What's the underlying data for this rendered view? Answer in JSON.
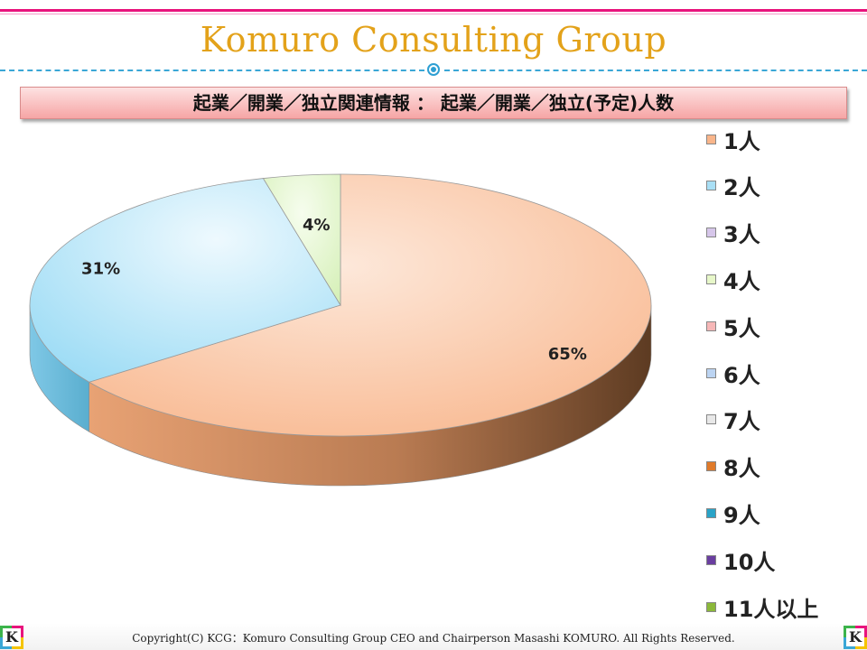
{
  "header": {
    "brand_title": "Komuro Consulting Group",
    "subtitle": "起業／開業／独立関連情報 ： 起業／開業／独立(予定)人数"
  },
  "footer": {
    "copyright": "Copyright(C) KCG：Komuro Consulting Group CEO and Chairperson Masashi KOMURO. All Rights Reserved.",
    "logo_letter": "K"
  },
  "colors": {
    "accent_pink": "#e8147d",
    "title_gold": "#e3a21a",
    "dash_blue": "#3aa7d6"
  },
  "chart_data": {
    "type": "pie",
    "title": "",
    "three_d": true,
    "start_angle_deg": 0,
    "slices": [
      {
        "name": "1人",
        "value": 65,
        "label": "65%",
        "color": "#f9b58a",
        "dark": "#a0633a"
      },
      {
        "name": "2人",
        "value": 31,
        "label": "31%",
        "color": "#a9dff5",
        "dark": "#5aaecf"
      },
      {
        "name": "4人",
        "value": 4,
        "label": "4%",
        "color": "#dff5c6",
        "dark": "#9ccb6e"
      }
    ],
    "legend_position": "right",
    "legend": [
      {
        "name": "1人",
        "color": "#f9b58a"
      },
      {
        "name": "2人",
        "color": "#a9dff5"
      },
      {
        "name": "3人",
        "color": "#d6c6ea"
      },
      {
        "name": "4人",
        "color": "#e7f7c9"
      },
      {
        "name": "5人",
        "color": "#f6b7b7"
      },
      {
        "name": "6人",
        "color": "#bcd4f2"
      },
      {
        "name": "7人",
        "color": "#e8e8e8"
      },
      {
        "name": "8人",
        "color": "#e07a2a"
      },
      {
        "name": "9人",
        "color": "#2aa3c7"
      },
      {
        "name": "10人",
        "color": "#6a3ea0"
      },
      {
        "name": "11人以上",
        "color": "#8bb83a"
      }
    ]
  }
}
